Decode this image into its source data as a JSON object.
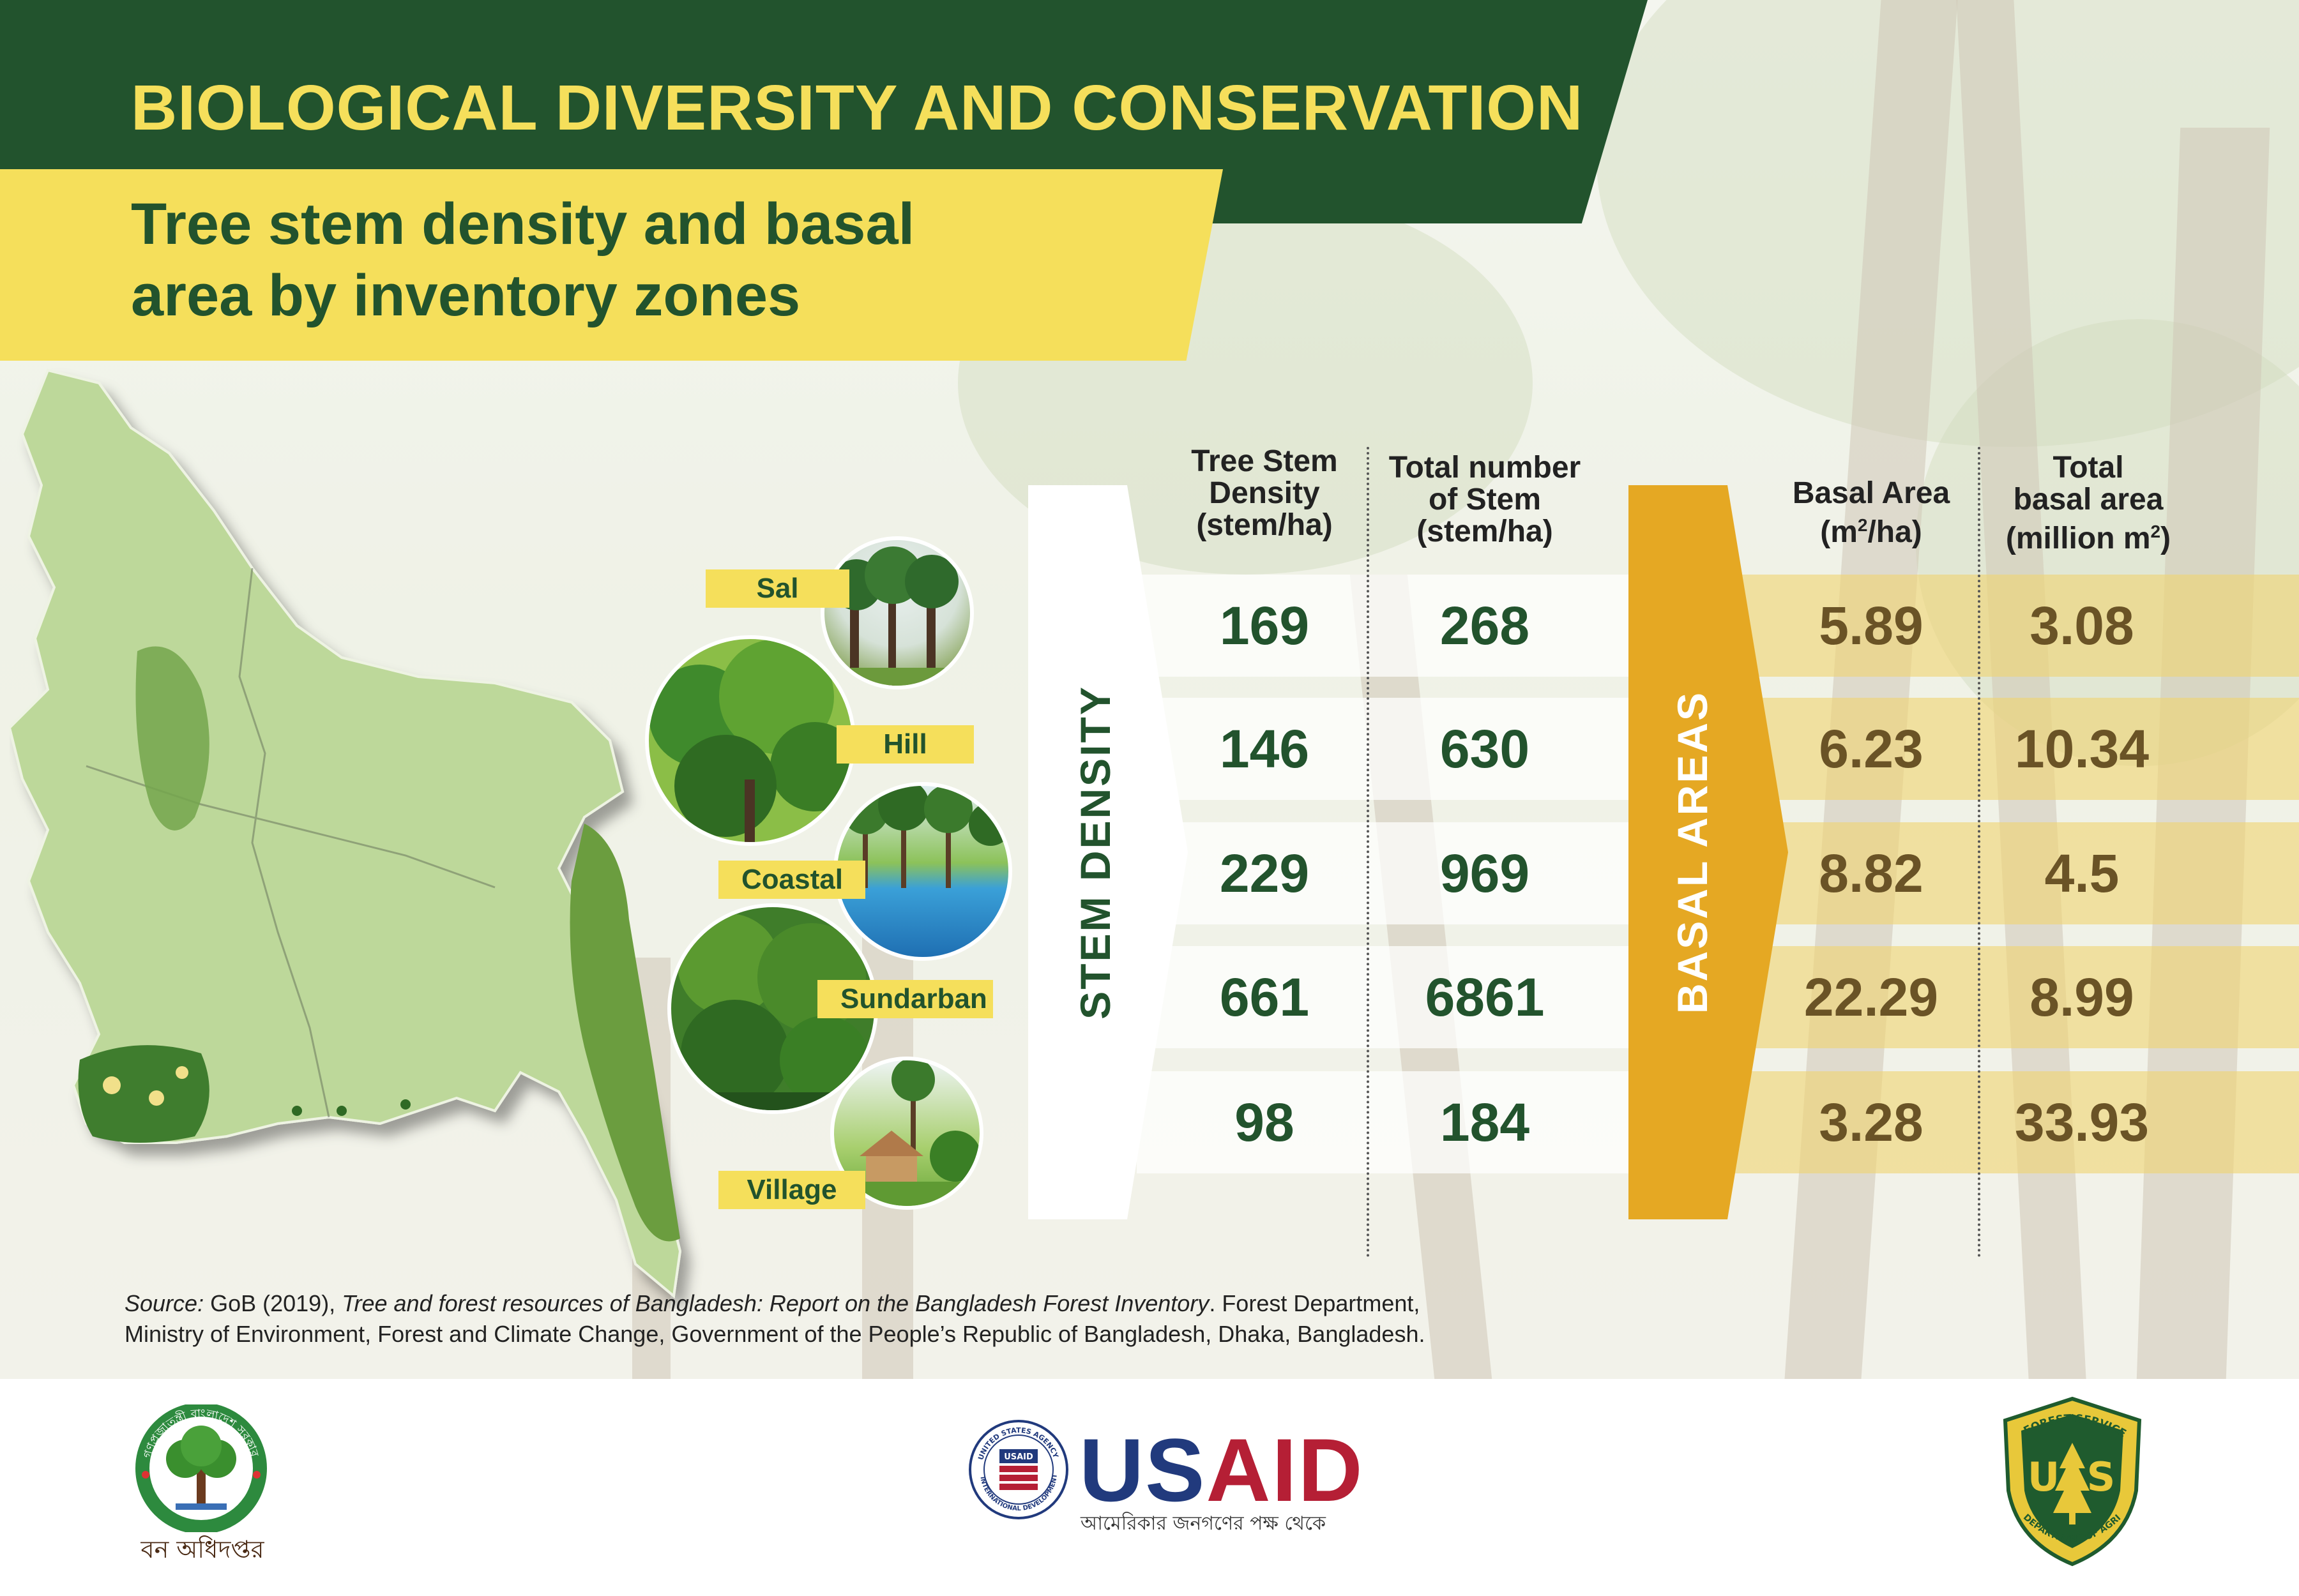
{
  "header": {
    "title": "BIOLOGICAL DIVERSITY AND CONSERVATION",
    "subtitle_line1": "Tree stem density and basal",
    "subtitle_line2": "area by inventory zones"
  },
  "side_labels": {
    "stem": "STEM DENSITY",
    "basal": "BASAL AREAS"
  },
  "columns": {
    "density": {
      "line1": "Tree Stem",
      "line2": "Density",
      "line3": "(stem/ha)"
    },
    "total_stem": {
      "line1": "Total number",
      "line2": "of Stem",
      "line3": "(stem/ha)"
    },
    "basal_area": {
      "line1": "Basal Area",
      "line2_pre": "(m",
      "sup": "2",
      "line2_post": "/ha)"
    },
    "total_basal": {
      "line1": "Total",
      "line2": "basal area",
      "line3_pre": "(million m",
      "sup": "2",
      "line3_post": ")"
    }
  },
  "zones": [
    {
      "name": "Sal",
      "density": "169",
      "total_stem": "268",
      "basal_area": "5.89",
      "total_basal": "3.08"
    },
    {
      "name": "Hill",
      "density": "146",
      "total_stem": "630",
      "basal_area": "6.23",
      "total_basal": "10.34"
    },
    {
      "name": "Coastal",
      "density": "229",
      "total_stem": "969",
      "basal_area": "8.82",
      "total_basal": "4.5"
    },
    {
      "name": "Sundarban",
      "density": "661",
      "total_stem": "6861",
      "basal_area": "22.29",
      "total_basal": "8.99"
    },
    {
      "name": "Village",
      "density": "98",
      "total_stem": "184",
      "basal_area": "3.28",
      "total_basal": "33.93"
    }
  ],
  "source": {
    "label": "Source:",
    "part1": " GoB (2019), ",
    "title": "Tree and forest resources of Bangladesh: Report on the Bangladesh Forest Inventory",
    "part2": ". Forest Department,",
    "line2": "Ministry of Environment, Forest and Climate Change, Government of the People’s Republic of Bangladesh, Dhaka, Bangladesh."
  },
  "logos": {
    "forest_dept_caption": "বন অধিদপ্তর",
    "forest_dept_ring": "গণপ্রজাতন্ত্রী বাংলাদেশ সরকার",
    "usaid_us": "US",
    "usaid_aid": "AID",
    "usaid_tagline": "আমেরিকার জনগণের পক্ষ থেকে",
    "usaid_seal_top": "UNITED STATES AGENCY",
    "usaid_seal_bottom": "INTERNATIONAL DEVELOPMENT",
    "usaid_seal_center": "USAID",
    "usfs_top": "FOREST SERVICE",
    "usfs_bottom": "DEPARTMENT OF AGRICULTURE",
    "usfs_u": "U",
    "usfs_s": "S"
  },
  "colors": {
    "dark_green": "#22532d",
    "yellow": "#f5df5b",
    "gold_arrow": "#e5a823",
    "value_brown": "#6a5326"
  }
}
